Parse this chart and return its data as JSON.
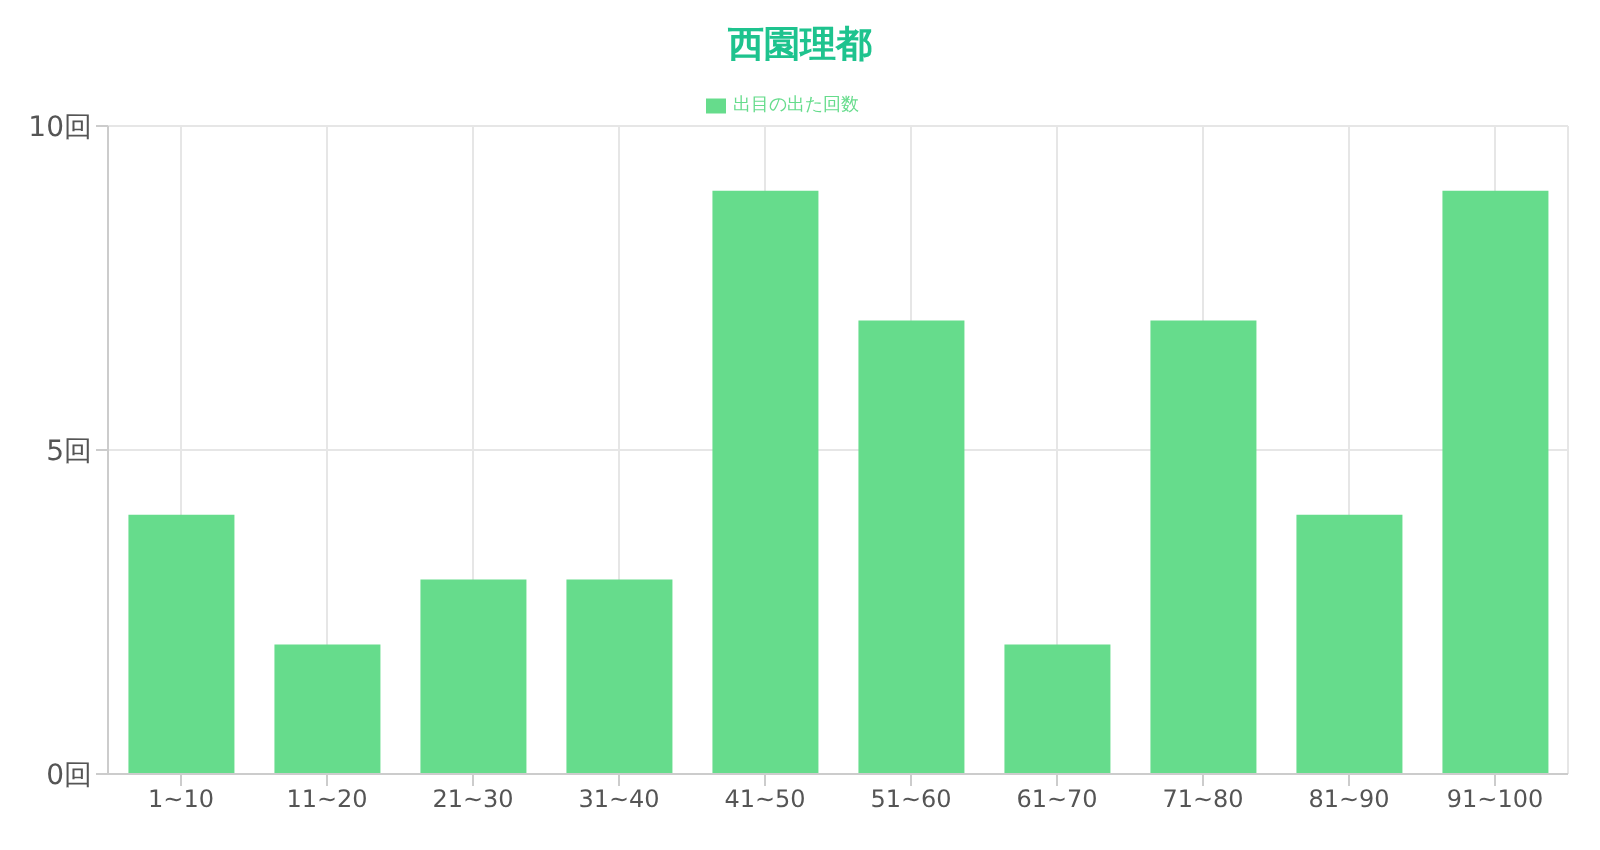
{
  "chart_data": {
    "type": "bar",
    "title": "西園理都",
    "categories": [
      "1~10",
      "11~20",
      "21~30",
      "31~40",
      "41~50",
      "51~60",
      "61~70",
      "71~80",
      "81~90",
      "91~100"
    ],
    "series": [
      {
        "name": "出目の出た回数",
        "color": "#66dc8c",
        "values": [
          4,
          2,
          3,
          3,
          9,
          7,
          2,
          7,
          4,
          9
        ]
      }
    ],
    "ylim": [
      0,
      10
    ],
    "yticks": [
      {
        "value": 0,
        "label": "0回"
      },
      {
        "value": 5,
        "label": "5回"
      },
      {
        "value": 10,
        "label": "10回"
      }
    ],
    "grid": true,
    "legend": "top"
  }
}
